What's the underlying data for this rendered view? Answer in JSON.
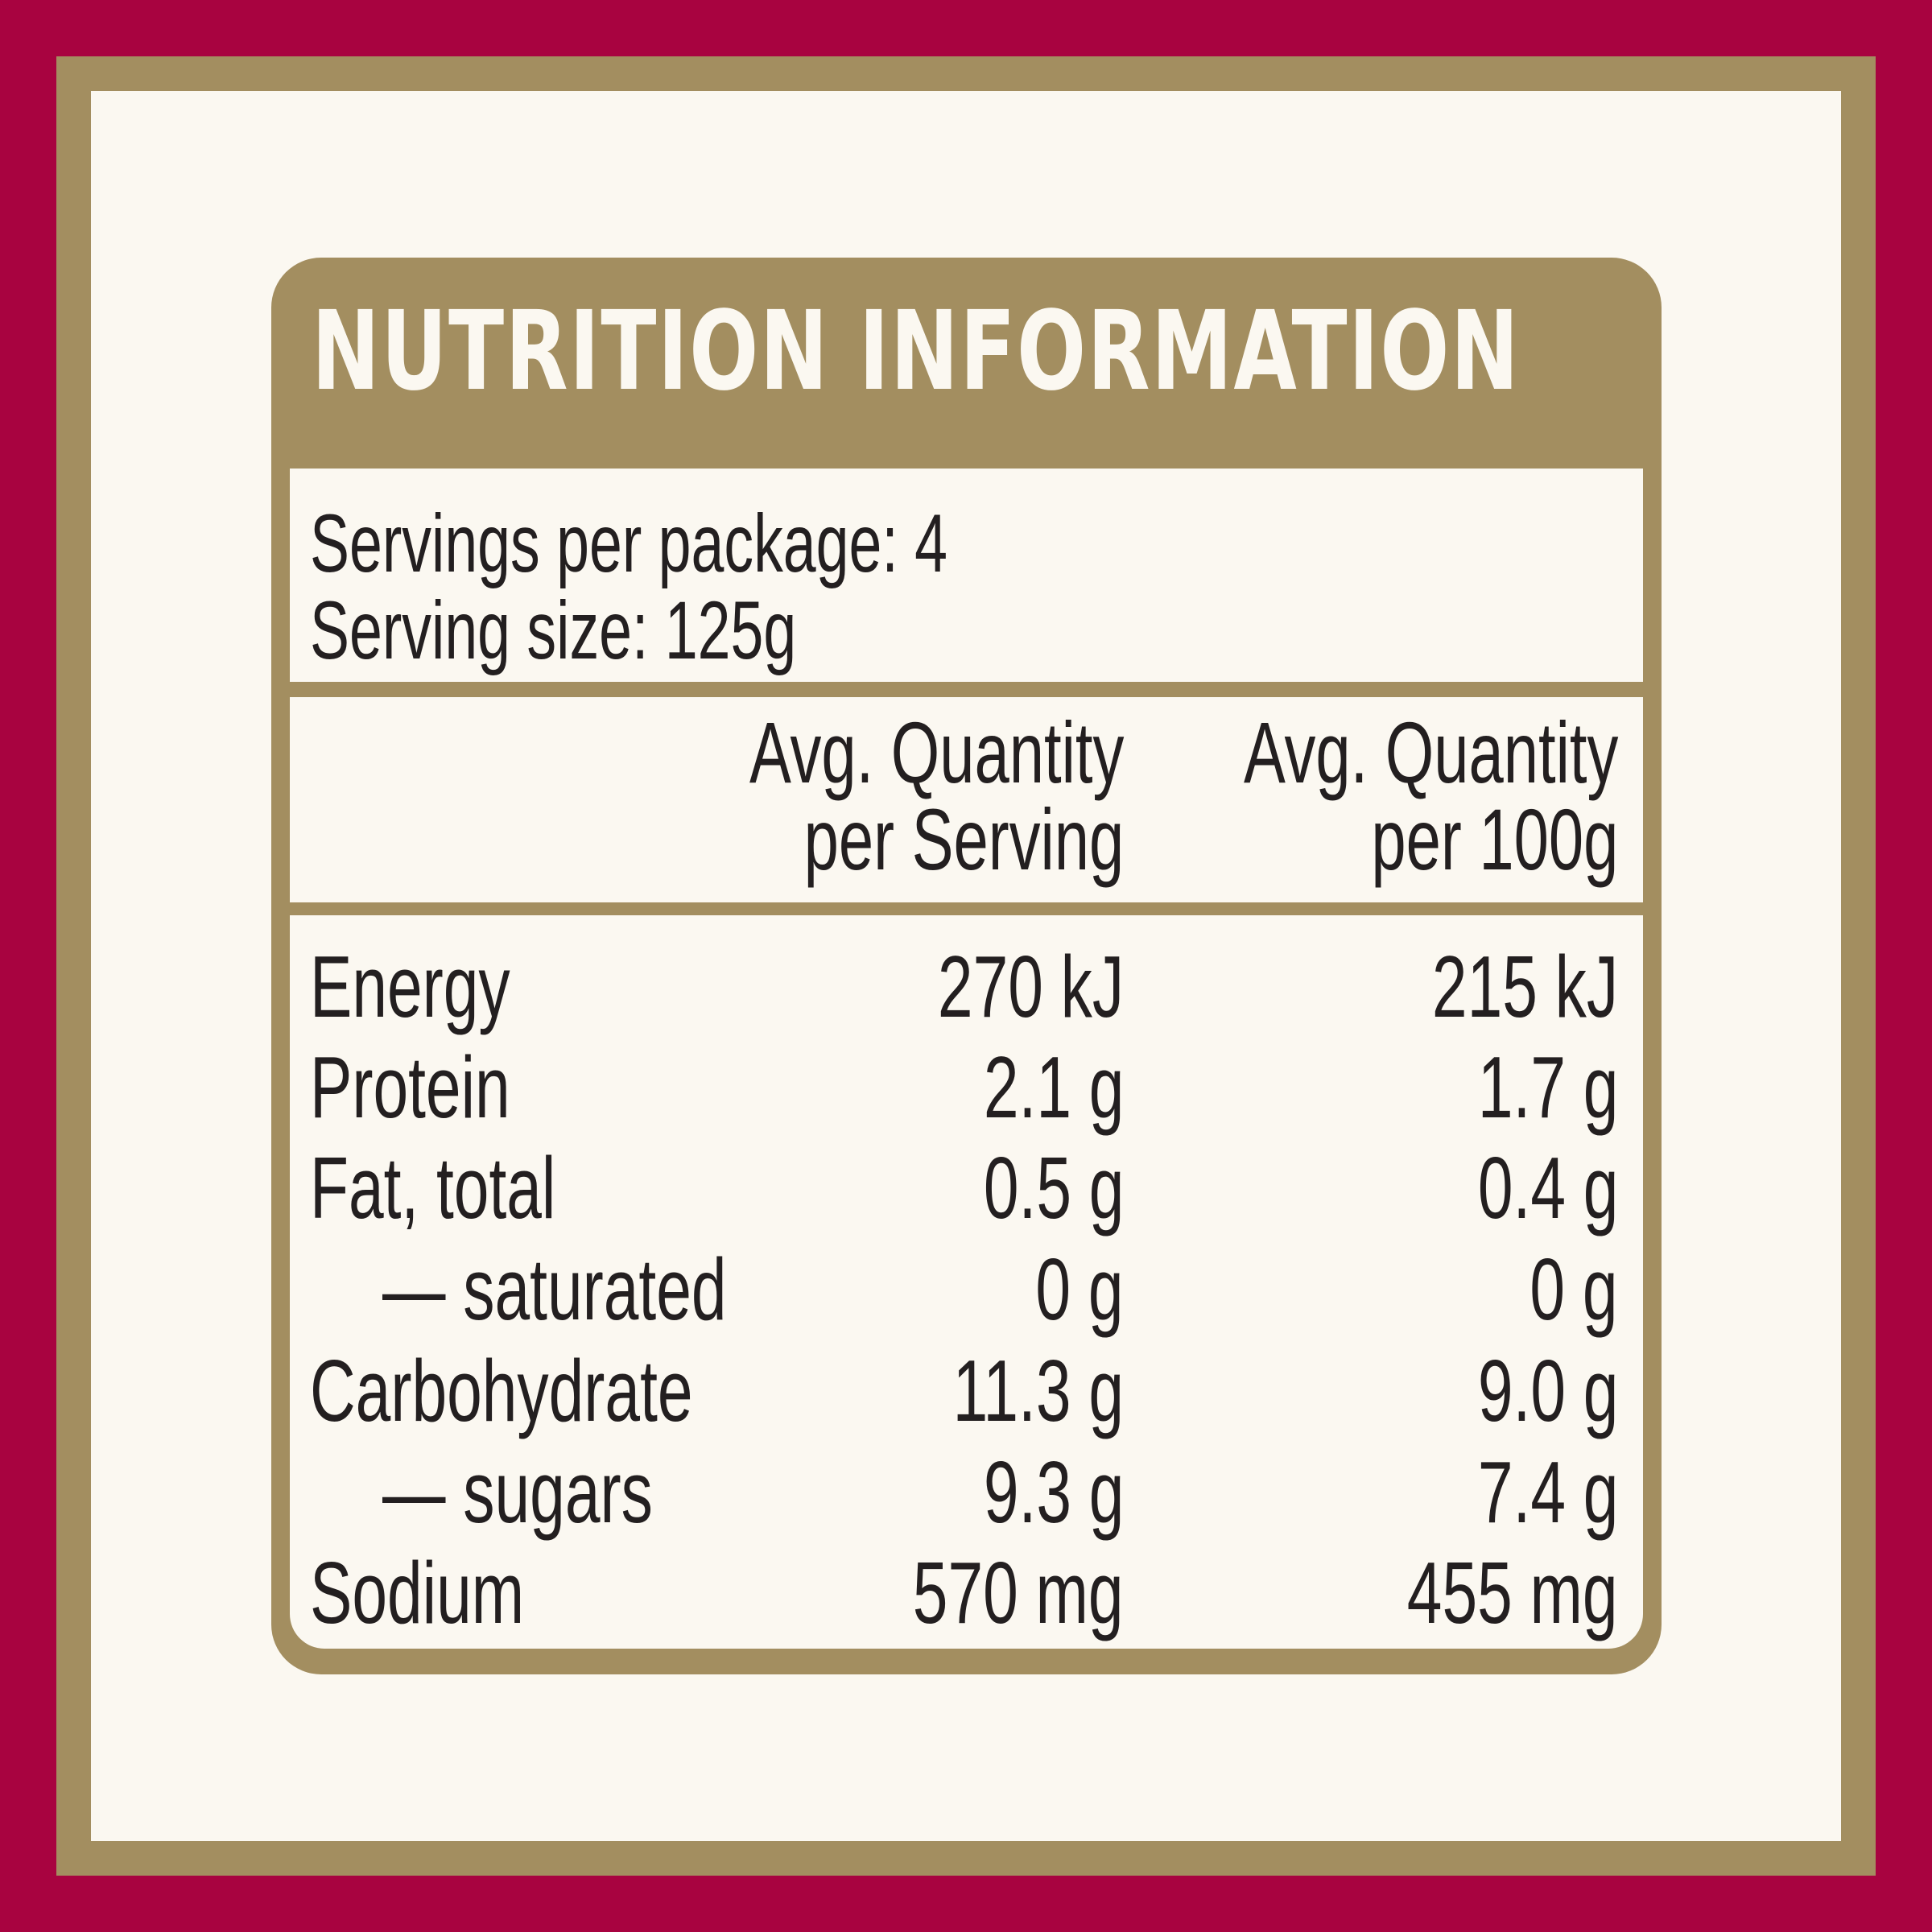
{
  "title": "NUTRITION INFORMATION",
  "servings_per_package": "Servings per package: 4",
  "serving_size": "Serving size: 125g",
  "columns": {
    "per_serving_line1": "Avg. Quantity",
    "per_serving_line2": "per Serving",
    "per_100g_line1": "Avg. Quantity",
    "per_100g_line2": "per 100g"
  },
  "nutrients": [
    {
      "name": "Energy",
      "per_serving": "270 kJ",
      "per_100g": "215 kJ"
    },
    {
      "name": "Protein",
      "per_serving": "2.1 g",
      "per_100g": "1.7 g"
    },
    {
      "name": "Fat, total",
      "per_serving": "0.5 g",
      "per_100g": "0.4 g"
    },
    {
      "name": "— saturated",
      "per_serving": "0 g",
      "per_100g": "0 g"
    },
    {
      "name": "Carbohydrate",
      "per_serving": "11.3 g",
      "per_100g": "9.0 g"
    },
    {
      "name": "— sugars",
      "per_serving": "9.3 g",
      "per_100g": "7.4 g"
    },
    {
      "name": "Sodium",
      "per_serving": "570 mg",
      "per_100g": "455 mg"
    }
  ],
  "colors": {
    "outer_border": "#a80340",
    "gold": "#a38e60",
    "cream": "#fbf8f1",
    "text": "#231f20"
  }
}
